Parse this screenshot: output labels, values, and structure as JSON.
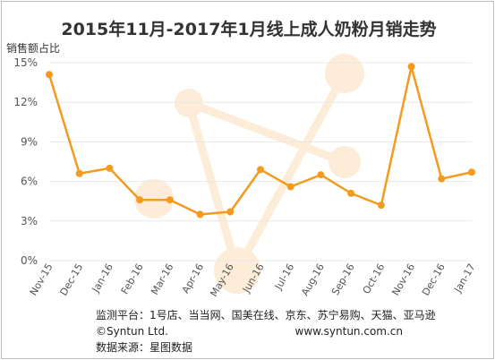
{
  "chart_data": {
    "type": "line",
    "title": "2015年11月-2017年1月线上成人奶粉月销走势",
    "ylabel": "销售额占比",
    "xlabel": "",
    "categories": [
      "Nov-15",
      "Dec-15",
      "Jan-16",
      "Feb-16",
      "Mar-16",
      "Apr-16",
      "May-16",
      "Jun-16",
      "Jul-16",
      "Aug-16",
      "Sep-16",
      "Oct-16",
      "Nov-16",
      "Dec-16",
      "Jan-17"
    ],
    "values": [
      14.1,
      6.6,
      7.0,
      4.6,
      4.6,
      3.5,
      3.7,
      6.9,
      5.6,
      6.5,
      5.1,
      4.2,
      14.7,
      6.2,
      6.7
    ],
    "yticks": [
      "0%",
      "3%",
      "6%",
      "9%",
      "12%",
      "15%"
    ],
    "ylim": [
      0,
      15
    ],
    "grid": true,
    "colors": {
      "line": "#f39a1f",
      "marker": "#f39a1f",
      "grid": "#e8e8e8",
      "watermark": "#fbe6cc"
    }
  },
  "footer": {
    "line1": "监测平台：1号店、当当网、国美在线、京东、苏宁易购、天猫、亚马逊",
    "copyright": "©Syntun Ltd.",
    "url": "www.syntun.com.cn",
    "source": "数据来源：星图数据"
  }
}
